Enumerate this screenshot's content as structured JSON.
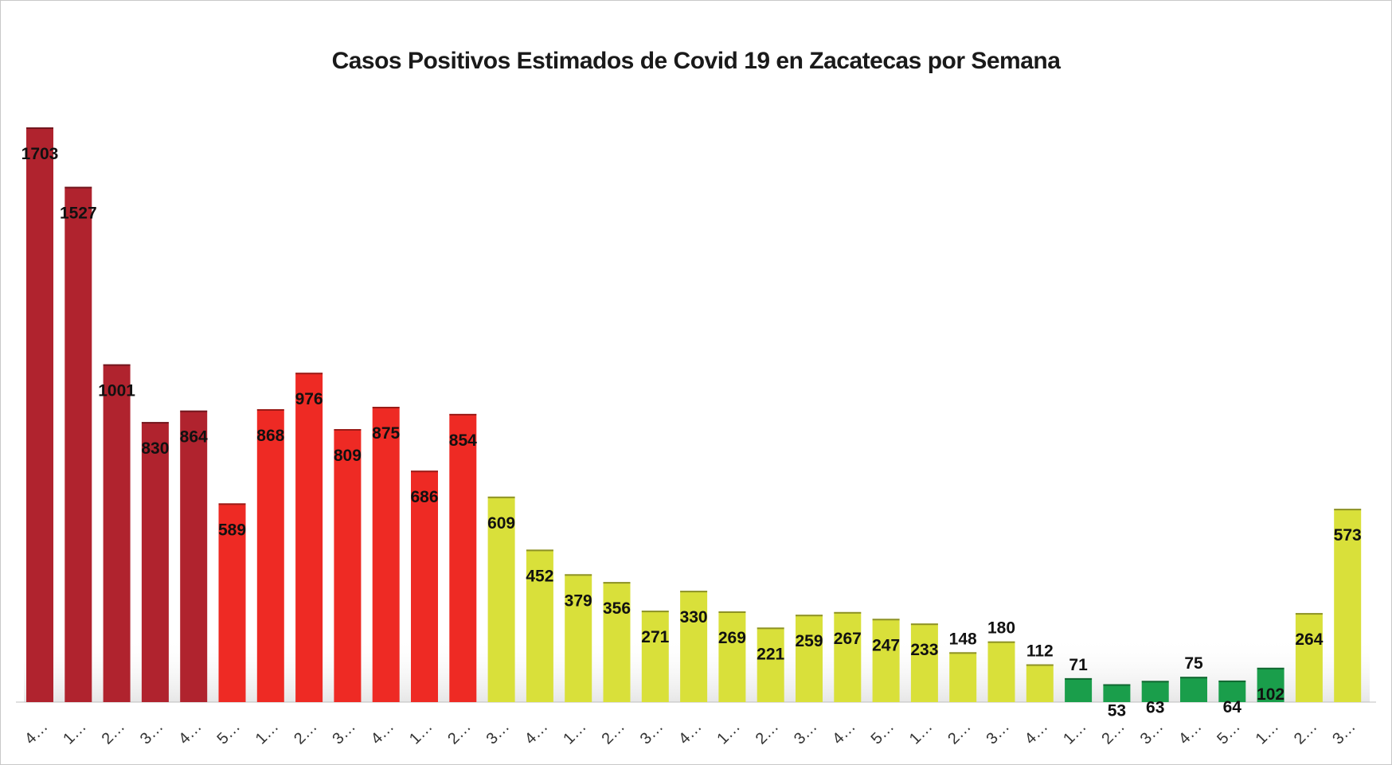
{
  "chart_data": {
    "type": "bar",
    "title": "Casos Positivos Estimados de Covid 19 en Zacatecas por Semana",
    "xlabel": "",
    "ylabel": "",
    "ylim": [
      0,
      1800
    ],
    "grid": false,
    "legend": "none",
    "categories": [
      "4…",
      "1…",
      "2…",
      "3…",
      "4…",
      "5…",
      "1…",
      "2…",
      "3…",
      "4…",
      "1…",
      "2…",
      "3…",
      "4…",
      "1…",
      "2…",
      "3…",
      "4…",
      "1…",
      "2…",
      "3…",
      "4…",
      "5…",
      "1…",
      "2…",
      "3…",
      "4…",
      "1…",
      "2…",
      "3…",
      "4…",
      "5…",
      "1…",
      "2…",
      "3…"
    ],
    "values": [
      1703,
      1527,
      1001,
      830,
      864,
      589,
      868,
      976,
      809,
      875,
      686,
      854,
      609,
      452,
      379,
      356,
      271,
      330,
      269,
      221,
      259,
      267,
      247,
      233,
      148,
      180,
      112,
      71,
      53,
      63,
      75,
      64,
      102,
      264,
      573
    ],
    "label_position": [
      "inside",
      "inside",
      "inside",
      "inside",
      "inside",
      "inside",
      "inside",
      "inside",
      "inside",
      "inside",
      "inside",
      "inside",
      "inside",
      "inside",
      "inside",
      "inside",
      "inside",
      "inside",
      "inside",
      "inside",
      "inside",
      "inside",
      "inside",
      "inside",
      "above",
      "above",
      "above",
      "above",
      "inside",
      "inside",
      "above",
      "inside",
      "inside",
      "inside",
      "inside"
    ],
    "bar_colors": [
      "#b0232e",
      "#b0232e",
      "#b0232e",
      "#b0232e",
      "#b0232e",
      "#ee2a24",
      "#ee2a24",
      "#ee2a24",
      "#ee2a24",
      "#ee2a24",
      "#ee2a24",
      "#ee2a24",
      "#d9e03a",
      "#d9e03a",
      "#d9e03a",
      "#d9e03a",
      "#d9e03a",
      "#d9e03a",
      "#d9e03a",
      "#d9e03a",
      "#d9e03a",
      "#d9e03a",
      "#d9e03a",
      "#d9e03a",
      "#d9e03a",
      "#d9e03a",
      "#d9e03a",
      "#1a9e4b",
      "#1a9e4b",
      "#1a9e4b",
      "#1a9e4b",
      "#1a9e4b",
      "#1a9e4b",
      "#d9e03a",
      "#d9e03a"
    ]
  }
}
